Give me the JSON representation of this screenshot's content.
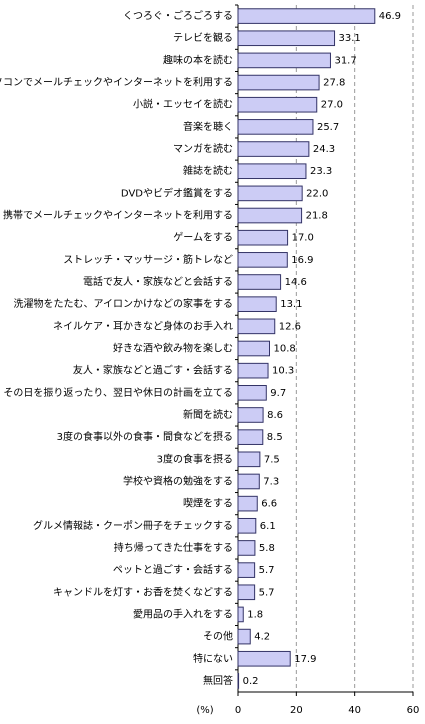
{
  "chart_data": {
    "type": "hbar",
    "x_label": "(%)",
    "categories": [
      "くつろぐ・ごろごろする",
      "テレビを観る",
      "趣味の本を読む",
      "パソコンでメールチェックやインターネットを利用する",
      "小説・エッセイを読む",
      "音楽を聴く",
      "マンガを読む",
      "雑誌を読む",
      "DVDやビデオ鑑賞をする",
      "携帯でメールチェックやインターネットを利用する",
      "ゲームをする",
      "ストレッチ・マッサージ・筋トレなど",
      "電話で友人・家族などと会話する",
      "洗濯物をたたむ、アイロンかけなどの家事をする",
      "ネイルケア・耳かきなど身体のお手入れ",
      "好きな酒や飲み物を楽しむ",
      "友人・家族などと過ごす・会話する",
      "その日を振り返ったり、翌日や休日の計画を立てる",
      "新聞を読む",
      "3度の食事以外の食事・間食などを摂る",
      "3度の食事を摂る",
      "学校や資格の勉強をする",
      "喫煙をする",
      "グルメ情報誌・クーポン冊子をチェックする",
      "持ち帰ってきた仕事をする",
      "ペットと過ごす・会話する",
      "キャンドルを灯す・お香を焚くなどする",
      "愛用品の手入れをする",
      "その他",
      "特にない",
      "無回答"
    ],
    "values": [
      46.9,
      33.1,
      31.7,
      27.8,
      27.0,
      25.7,
      24.3,
      23.3,
      22.0,
      21.8,
      17.0,
      16.9,
      14.6,
      13.1,
      12.6,
      10.8,
      10.3,
      9.7,
      8.6,
      8.5,
      7.5,
      7.3,
      6.6,
      6.1,
      5.8,
      5.7,
      5.7,
      1.8,
      4.2,
      17.9,
      0.2
    ],
    "value_labels": [
      "46.9",
      "33.1",
      "31.7",
      "27.8",
      "27.0",
      "25.7",
      "24.3",
      "23.3",
      "22.0",
      "21.8",
      "17.0",
      "16.9",
      "14.6",
      "13.1",
      "12.6",
      "10.8",
      "10.3",
      "9.7",
      "8.6",
      "8.5",
      "7.5",
      "7.3",
      "6.6",
      "6.1",
      "5.8",
      "5.7",
      "5.7",
      "1.8",
      "4.2",
      "17.9",
      "0.2"
    ],
    "color": "#ccccf5",
    "edge_color": "#333366",
    "xlim": [
      0,
      60
    ],
    "xticks": [
      0,
      20,
      40,
      60
    ],
    "grid": true
  }
}
